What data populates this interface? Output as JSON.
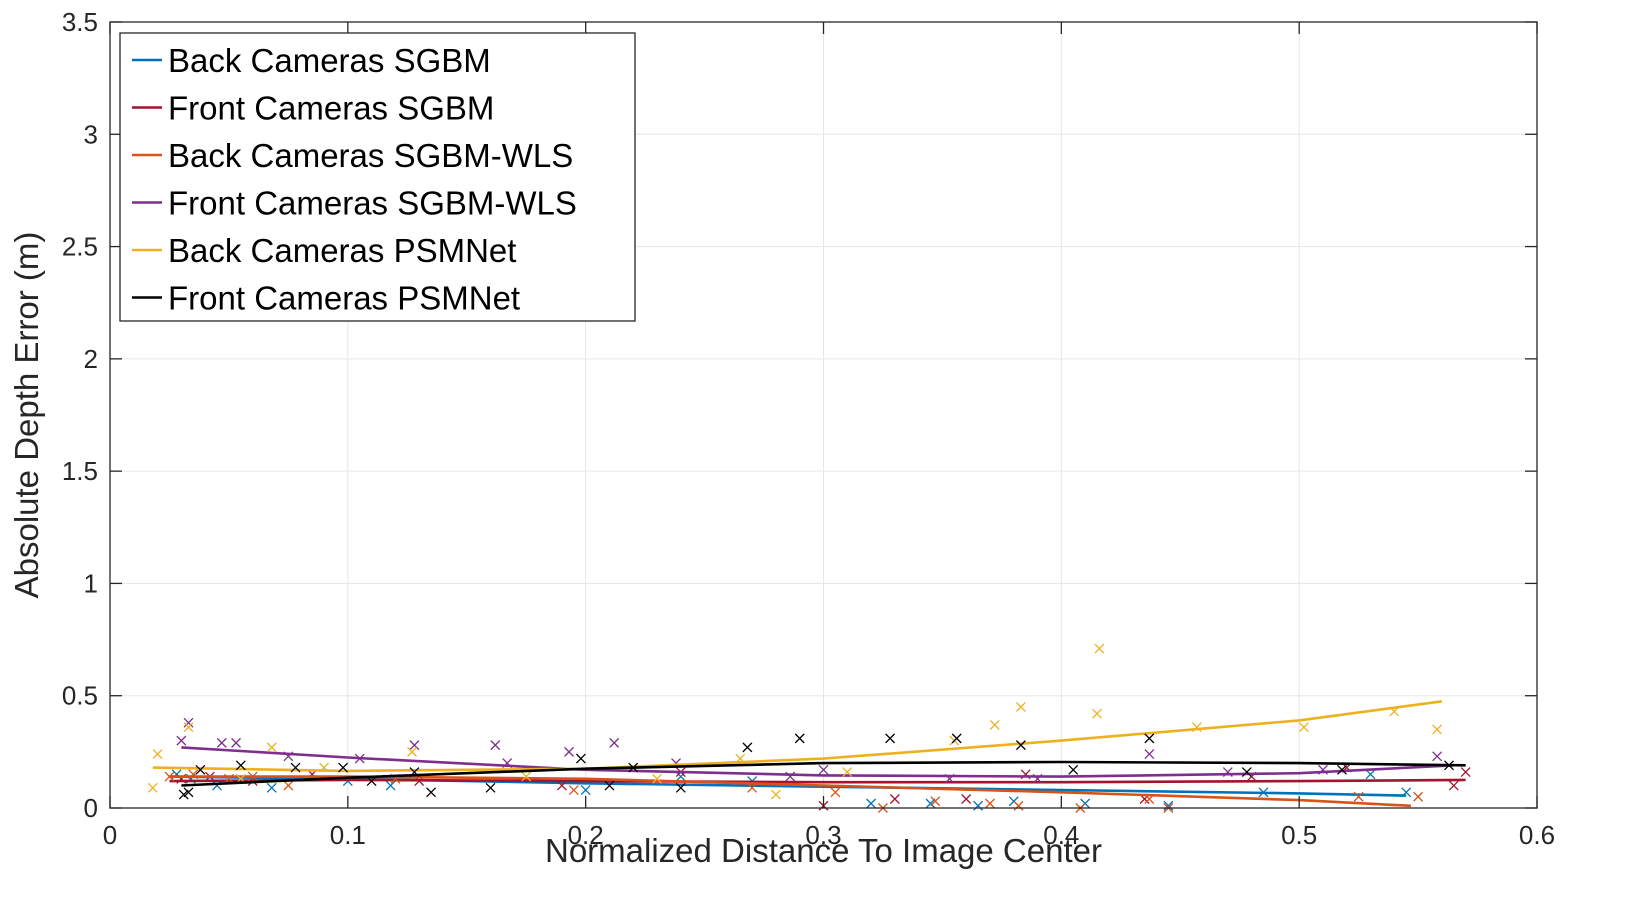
{
  "chart_data": {
    "type": "scatter",
    "xlabel": "Normalized Distance To Image Center",
    "ylabel": "Absolute Depth Error (m)",
    "xlim": [
      0,
      0.6
    ],
    "ylim": [
      0,
      3.5
    ],
    "xticks": [
      "0",
      "0.1",
      "0.2",
      "0.3",
      "0.4",
      "0.5",
      "0.6"
    ],
    "yticks": [
      "0",
      "0.5",
      "1",
      "1.5",
      "2",
      "2.5",
      "3",
      "3.5"
    ],
    "grid": true,
    "legend_position": "top-left",
    "series": [
      {
        "name": "Back Cameras SGBM",
        "color": "#0072BD",
        "fit": [
          [
            0.025,
            0.14
          ],
          [
            0.1,
            0.13
          ],
          [
            0.2,
            0.11
          ],
          [
            0.3,
            0.095
          ],
          [
            0.4,
            0.08
          ],
          [
            0.5,
            0.065
          ],
          [
            0.545,
            0.055
          ]
        ],
        "points": [
          [
            0.028,
            0.15
          ],
          [
            0.034,
            0.13
          ],
          [
            0.045,
            0.1
          ],
          [
            0.068,
            0.09
          ],
          [
            0.1,
            0.12
          ],
          [
            0.118,
            0.1
          ],
          [
            0.2,
            0.08
          ],
          [
            0.24,
            0.14
          ],
          [
            0.27,
            0.12
          ],
          [
            0.32,
            0.02
          ],
          [
            0.345,
            0.02
          ],
          [
            0.365,
            0.01
          ],
          [
            0.38,
            0.03
          ],
          [
            0.41,
            0.02
          ],
          [
            0.445,
            0.01
          ],
          [
            0.485,
            0.07
          ],
          [
            0.53,
            0.15
          ],
          [
            0.545,
            0.07
          ]
        ]
      },
      {
        "name": "Front Cameras SGBM",
        "color": "#A2142F",
        "fit": [
          [
            0.025,
            0.12
          ],
          [
            0.1,
            0.125
          ],
          [
            0.2,
            0.12
          ],
          [
            0.3,
            0.115
          ],
          [
            0.4,
            0.115
          ],
          [
            0.5,
            0.12
          ],
          [
            0.57,
            0.125
          ]
        ],
        "points": [
          [
            0.03,
            0.13
          ],
          [
            0.042,
            0.14
          ],
          [
            0.06,
            0.12
          ],
          [
            0.085,
            0.15
          ],
          [
            0.13,
            0.12
          ],
          [
            0.19,
            0.1
          ],
          [
            0.24,
            0.16
          ],
          [
            0.3,
            0.01
          ],
          [
            0.33,
            0.04
          ],
          [
            0.36,
            0.04
          ],
          [
            0.385,
            0.15
          ],
          [
            0.435,
            0.04
          ],
          [
            0.48,
            0.14
          ],
          [
            0.52,
            0.18
          ],
          [
            0.565,
            0.1
          ],
          [
            0.57,
            0.16
          ]
        ]
      },
      {
        "name": "Back Cameras SGBM-WLS",
        "color": "#D95319",
        "fit": [
          [
            0.025,
            0.14
          ],
          [
            0.1,
            0.14
          ],
          [
            0.2,
            0.13
          ],
          [
            0.3,
            0.1
          ],
          [
            0.4,
            0.07
          ],
          [
            0.5,
            0.035
          ],
          [
            0.547,
            0.01
          ]
        ],
        "points": [
          [
            0.025,
            0.14
          ],
          [
            0.035,
            0.15
          ],
          [
            0.05,
            0.13
          ],
          [
            0.06,
            0.14
          ],
          [
            0.075,
            0.1
          ],
          [
            0.12,
            0.13
          ],
          [
            0.195,
            0.08
          ],
          [
            0.27,
            0.09
          ],
          [
            0.305,
            0.07
          ],
          [
            0.325,
            0.0
          ],
          [
            0.347,
            0.03
          ],
          [
            0.37,
            0.02
          ],
          [
            0.382,
            0.01
          ],
          [
            0.408,
            0.0
          ],
          [
            0.437,
            0.04
          ],
          [
            0.445,
            0.0
          ],
          [
            0.525,
            0.05
          ],
          [
            0.55,
            0.05
          ]
        ]
      },
      {
        "name": "Front Cameras SGBM-WLS",
        "color": "#7E2F8E",
        "fit": [
          [
            0.03,
            0.27
          ],
          [
            0.1,
            0.225
          ],
          [
            0.2,
            0.17
          ],
          [
            0.3,
            0.145
          ],
          [
            0.4,
            0.14
          ],
          [
            0.5,
            0.155
          ],
          [
            0.565,
            0.19
          ]
        ],
        "points": [
          [
            0.03,
            0.3
          ],
          [
            0.033,
            0.38
          ],
          [
            0.047,
            0.29
          ],
          [
            0.053,
            0.29
          ],
          [
            0.075,
            0.23
          ],
          [
            0.105,
            0.22
          ],
          [
            0.128,
            0.28
          ],
          [
            0.162,
            0.28
          ],
          [
            0.167,
            0.2
          ],
          [
            0.193,
            0.25
          ],
          [
            0.212,
            0.29
          ],
          [
            0.238,
            0.2
          ],
          [
            0.286,
            0.14
          ],
          [
            0.3,
            0.17
          ],
          [
            0.353,
            0.13
          ],
          [
            0.39,
            0.13
          ],
          [
            0.437,
            0.24
          ],
          [
            0.47,
            0.16
          ],
          [
            0.51,
            0.17
          ],
          [
            0.558,
            0.23
          ]
        ]
      },
      {
        "name": "Back Cameras PSMNet",
        "color": "#EDB120",
        "fit": [
          [
            0.018,
            0.18
          ],
          [
            0.1,
            0.165
          ],
          [
            0.2,
            0.175
          ],
          [
            0.3,
            0.22
          ],
          [
            0.4,
            0.3
          ],
          [
            0.5,
            0.39
          ],
          [
            0.56,
            0.475
          ]
        ],
        "points": [
          [
            0.018,
            0.09
          ],
          [
            0.02,
            0.24
          ],
          [
            0.033,
            0.36
          ],
          [
            0.055,
            0.13
          ],
          [
            0.068,
            0.27
          ],
          [
            0.09,
            0.18
          ],
          [
            0.127,
            0.25
          ],
          [
            0.175,
            0.14
          ],
          [
            0.23,
            0.13
          ],
          [
            0.265,
            0.22
          ],
          [
            0.28,
            0.06
          ],
          [
            0.31,
            0.16
          ],
          [
            0.355,
            0.3
          ],
          [
            0.372,
            0.37
          ],
          [
            0.383,
            0.45
          ],
          [
            0.415,
            0.42
          ],
          [
            0.416,
            0.71
          ],
          [
            0.457,
            0.36
          ],
          [
            0.502,
            0.36
          ],
          [
            0.54,
            0.43
          ],
          [
            0.558,
            0.35
          ]
        ]
      },
      {
        "name": "Front Cameras PSMNet",
        "color": "#000000",
        "fit": [
          [
            0.03,
            0.1
          ],
          [
            0.1,
            0.135
          ],
          [
            0.2,
            0.175
          ],
          [
            0.3,
            0.2
          ],
          [
            0.4,
            0.205
          ],
          [
            0.5,
            0.2
          ],
          [
            0.57,
            0.19
          ]
        ],
        "points": [
          [
            0.031,
            0.06
          ],
          [
            0.033,
            0.07
          ],
          [
            0.038,
            0.17
          ],
          [
            0.055,
            0.19
          ],
          [
            0.078,
            0.18
          ],
          [
            0.098,
            0.18
          ],
          [
            0.11,
            0.12
          ],
          [
            0.128,
            0.16
          ],
          [
            0.135,
            0.07
          ],
          [
            0.16,
            0.09
          ],
          [
            0.198,
            0.22
          ],
          [
            0.21,
            0.1
          ],
          [
            0.22,
            0.18
          ],
          [
            0.24,
            0.09
          ],
          [
            0.268,
            0.27
          ],
          [
            0.29,
            0.31
          ],
          [
            0.328,
            0.31
          ],
          [
            0.356,
            0.31
          ],
          [
            0.383,
            0.28
          ],
          [
            0.405,
            0.17
          ],
          [
            0.437,
            0.31
          ],
          [
            0.478,
            0.16
          ],
          [
            0.518,
            0.17
          ],
          [
            0.563,
            0.19
          ]
        ]
      }
    ]
  }
}
